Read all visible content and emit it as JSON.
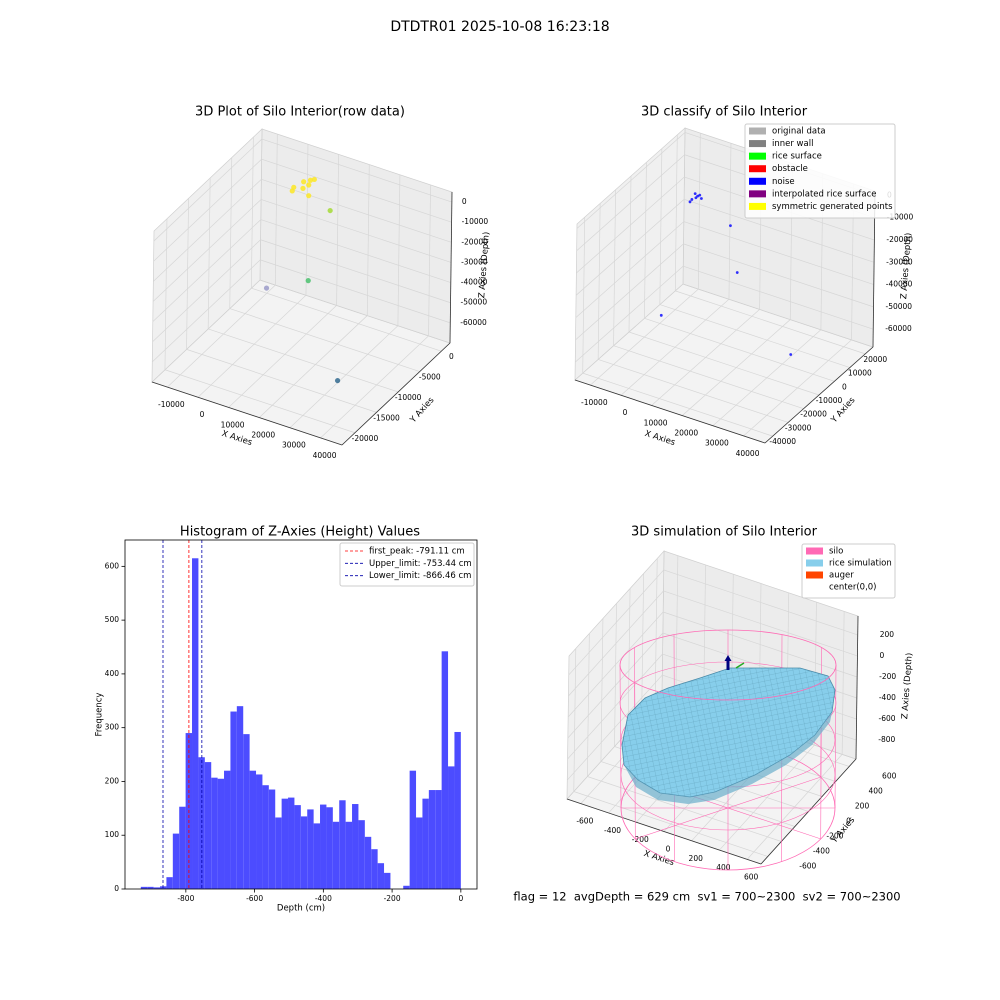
{
  "title": "DTDTR01 2025-10-08 16:23:18",
  "footer": "flag = 12  avgDepth = 629 cm  sv1 = 700~2300  sv2 = 700~2300",
  "chart_data": [
    {
      "type": "scatter3d",
      "title": "3D Plot of Silo Interior(row data)",
      "xlabel": "X Axies",
      "ylabel": "Y Axies",
      "zlabel": "Z Axies (Depth)",
      "xlim": [
        -15000,
        47000
      ],
      "ylim": [
        -23000,
        2000
      ],
      "zlim": [
        -70000,
        5000
      ],
      "xticks": [
        -10000,
        0,
        10000,
        20000,
        30000,
        40000
      ],
      "yticks": [
        0,
        -5000,
        -10000,
        -15000,
        -20000
      ],
      "zticks": [
        0,
        -10000,
        -20000,
        -30000,
        -40000,
        -50000,
        -60000
      ],
      "points": {
        "x": [
          5000,
          6500,
          7500,
          5500,
          2500,
          2300,
          8500,
          6800,
          14700,
          14600,
          3900,
          34550
        ],
        "y": [
          -2500,
          -2000,
          -1800,
          -3000,
          -3000,
          -3200,
          -3800,
          -2600,
          -3200,
          -8050,
          -10080,
          -15250
        ],
        "z": [
          -2000,
          -1500,
          -1000,
          -4000,
          -5000,
          -6500,
          -4500,
          -2500,
          -10000,
          -35000,
          -40000,
          -60000
        ],
        "colors": [
          "#fde725",
          "#fde725",
          "#fde725",
          "#fde725",
          "#fde725",
          "#fde725",
          "#fde725",
          "#fde725",
          "#a5db36",
          "#4ac16d",
          "#9a9ac8",
          "#31688e"
        ]
      }
    },
    {
      "type": "scatter3d",
      "title": "3D classify of Silo Interior",
      "xlabel": "X Axies",
      "ylabel": "Y Axies",
      "zlabel": "Z Axies (Depth)",
      "xlim": [
        -15000,
        47000
      ],
      "ylim": [
        -45000,
        25000
      ],
      "zlim": [
        -68000,
        2000
      ],
      "xticks": [
        -10000,
        0,
        10000,
        20000,
        30000,
        40000
      ],
      "yticks": [
        20000,
        10000,
        0,
        -10000,
        -20000,
        -30000,
        -40000
      ],
      "zticks": [
        0,
        -10000,
        -20000,
        -30000,
        -40000,
        -50000,
        -60000
      ],
      "legend": "upper right",
      "series": [
        {
          "name": "original data",
          "color": "#b0b0b0"
        },
        {
          "name": "inner wall",
          "color": "#808080"
        },
        {
          "name": "rice surface",
          "color": "#00ff00"
        },
        {
          "name": "obstacle",
          "color": "#ff0000"
        },
        {
          "name": "noise",
          "color": "#0000ff",
          "x": [
            3850,
            3200,
            4400,
            4800,
            2500,
            2100,
            3600,
            11900,
            14270,
            34170,
            -1180
          ],
          "y": [
            -4190,
            -4500,
            -3900,
            -3600,
            -5200,
            -5600,
            -4800,
            1340,
            1410,
            -3000,
            -16860
          ],
          "z": [
            -2000,
            -1000,
            -1500,
            -3000,
            -3500,
            -4500,
            -2500,
            -15000,
            -35000,
            -60000,
            -50000
          ]
        },
        {
          "name": "interpolated rice surface",
          "color": "#800080"
        },
        {
          "name": "symmetric generated points",
          "color": "#ffff00"
        }
      ]
    },
    {
      "type": "histogram",
      "title": "Histogram of Z-Axies (Height) Values",
      "xlabel": "Depth (cm)",
      "ylabel": "Frequency",
      "color": "#4c4cff",
      "xlim": [
        -977,
        47
      ],
      "ylim": [
        0,
        649
      ],
      "xticks": [
        -800,
        -600,
        -400,
        -200,
        0
      ],
      "yticks": [
        0,
        100,
        200,
        300,
        400,
        500,
        600
      ],
      "bins": [
        -931,
        -912.38,
        -893.76,
        -875.14,
        -856.52,
        -837.9,
        -819.28,
        -800.66,
        -782.04,
        -763.42,
        -744.8,
        -726.18,
        -707.56,
        -688.94,
        -670.32,
        -651.7,
        -633.08,
        -614.46,
        -595.84,
        -577.22,
        -558.6,
        -539.98,
        -521.36,
        -502.74,
        -484.12,
        -465.5,
        -446.88,
        -428.26,
        -409.64,
        -391.02,
        -372.4,
        -353.78,
        -335.16,
        -316.54,
        -297.92,
        -279.3,
        -260.68,
        -242.06,
        -223.44,
        -204.82,
        -186.2,
        -167.58,
        -148.96,
        -130.34,
        -111.72,
        -93.1,
        -74.48,
        -55.86,
        -37.24,
        -18.62,
        0
      ],
      "values": [
        4,
        4,
        3,
        5,
        22,
        103,
        153,
        290,
        615,
        245,
        236,
        207,
        205,
        220,
        330,
        340,
        288,
        220,
        213,
        193,
        185,
        133,
        168,
        170,
        156,
        135,
        148,
        122,
        157,
        152,
        125,
        165,
        125,
        158,
        128,
        97,
        74,
        48,
        30,
        0,
        0,
        6,
        220,
        133,
        168,
        184,
        184,
        442,
        228,
        292
      ],
      "legend": "upper right",
      "vlines": [
        {
          "label": "first_peak: -791.11 cm",
          "value": -791.11,
          "color": "#ff0000"
        },
        {
          "label": "Upper_limit: -753.44 cm",
          "value": -753.44,
          "color": "#0000aa"
        },
        {
          "label": "Lower_limit: -866.46 cm",
          "value": -866.46,
          "color": "#0000aa"
        }
      ]
    },
    {
      "type": "surface3d",
      "title": "3D simulation of Silo Interior",
      "xlabel": "X Axies",
      "ylabel": "Y Axies",
      "zlabel": "Z Axies (Depth)",
      "xlim": [
        -700,
        700
      ],
      "ylim": [
        -700,
        700
      ],
      "zlim": [
        -980,
        380
      ],
      "xticks": [
        -600,
        -400,
        -200,
        0,
        200,
        400,
        600
      ],
      "yticks": [
        600,
        400,
        200,
        0,
        -200,
        -400,
        -600
      ],
      "zticks": [
        200,
        0,
        -200,
        -400,
        -600,
        -800
      ],
      "legend": "upper right",
      "series": [
        {
          "name": "silo",
          "color": "#ff69b4"
        },
        {
          "name": "rice simulation",
          "color": "#87ceeb"
        },
        {
          "name": "auger",
          "color": "#ff4500"
        },
        {
          "name": "center(0,0)",
          "color": "#ffffff"
        }
      ]
    }
  ]
}
